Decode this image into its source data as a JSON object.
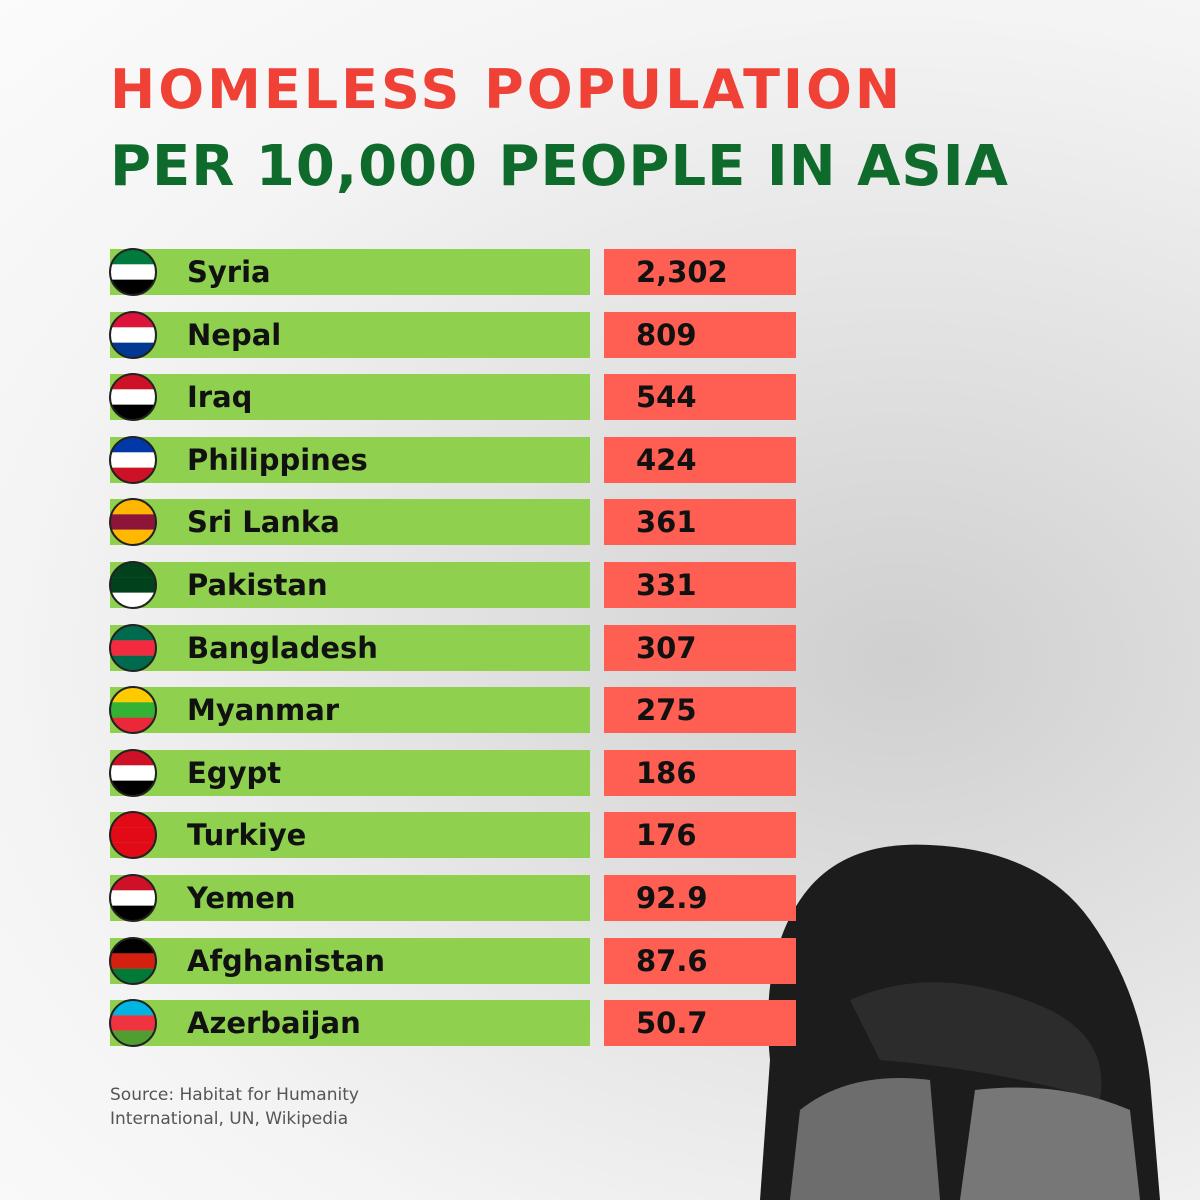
{
  "header": {
    "title": [
      "HOMELESS POPULATION",
      "PER 10,000 PEOPLE IN ASIA"
    ]
  },
  "table": {
    "rows": [
      [
        "Syria",
        "2,302"
      ],
      [
        "Nepal",
        "809"
      ],
      [
        "Iraq",
        "544"
      ],
      [
        "Philippines",
        "424"
      ],
      [
        "Sri Lanka",
        "361"
      ],
      [
        "Pakistan",
        "331"
      ],
      [
        "Bangladesh",
        "307"
      ],
      [
        "Myanmar",
        "275"
      ],
      [
        "Egypt",
        "186"
      ],
      [
        "Turkiye",
        "176"
      ],
      [
        "Yemen",
        "92.9"
      ],
      [
        "Afghanistan",
        "87.6"
      ],
      [
        "Azerbaijan",
        "50.7"
      ]
    ]
  },
  "source": [
    "Source: Habitat for Humanity",
    "International, UN, Wikipedia"
  ]
}
